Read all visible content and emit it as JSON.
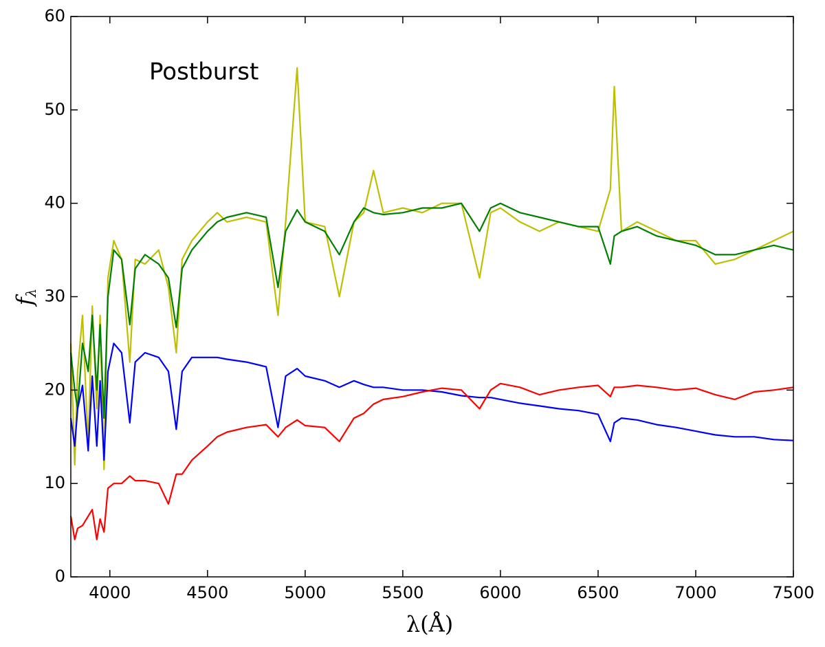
{
  "chart_data": {
    "type": "line",
    "xlabel": "λ(Å)",
    "ylabel": "f",
    "ylabel_subscript": "λ",
    "annotation": "Postburst",
    "x": [
      3800,
      3820,
      3835,
      3860,
      3889,
      3910,
      3933,
      3950,
      3970,
      3990,
      4020,
      4060,
      4102,
      4130,
      4180,
      4250,
      4300,
      4340,
      4370,
      4420,
      4500,
      4550,
      4600,
      4700,
      4800,
      4861,
      4900,
      4959,
      5000,
      5100,
      5175,
      5250,
      5300,
      5350,
      5400,
      5500,
      5600,
      5700,
      5800,
      5893,
      5950,
      6000,
      6100,
      6200,
      6300,
      6400,
      6500,
      6563,
      6583,
      6620,
      6700,
      6800,
      6900,
      7000,
      7100,
      7200,
      7300,
      7400,
      7500
    ],
    "series": [
      {
        "color": "#bfbf00",
        "values": [
          25,
          12,
          22,
          28,
          14,
          29,
          18,
          28,
          11.5,
          32,
          36,
          34,
          23,
          34,
          33.5,
          35,
          31,
          24,
          34,
          36,
          38,
          39,
          38,
          38.5,
          38,
          28,
          38,
          54.5,
          38,
          37.5,
          30,
          38,
          39,
          43.5,
          39,
          39.5,
          39,
          40,
          40,
          32,
          39,
          39.5,
          38,
          37,
          38,
          37.5,
          37,
          41.5,
          52.5,
          37,
          38,
          37,
          36,
          36,
          33.5,
          34,
          35,
          36,
          37
        ]
      },
      {
        "color": "#008000",
        "values": [
          24,
          20,
          18,
          25,
          22,
          28,
          20,
          27,
          17,
          30,
          35,
          34,
          27,
          33,
          34.5,
          33.5,
          32,
          26.7,
          33,
          35,
          37,
          38,
          38.5,
          39,
          38.5,
          31,
          37,
          39.3,
          38,
          37,
          34.5,
          38,
          39.5,
          39,
          38.8,
          39,
          39.5,
          39.5,
          40,
          37,
          39.5,
          40,
          39,
          38.5,
          38,
          37.5,
          37.5,
          33.5,
          36.5,
          37,
          37.5,
          36.5,
          36,
          35.5,
          34.5,
          34.5,
          35,
          35.5,
          35
        ]
      },
      {
        "color": "#0000ff",
        "values": [
          17,
          14,
          18,
          20.5,
          13.5,
          21.5,
          14,
          21,
          12.5,
          22,
          25,
          24,
          16.5,
          23,
          24,
          23.5,
          22,
          15.8,
          22,
          23.5,
          23.5,
          23.5,
          23.3,
          23,
          22.5,
          16,
          21.5,
          22.3,
          21.5,
          21,
          20.3,
          21,
          20.6,
          20.3,
          20.3,
          20,
          20,
          19.8,
          19.4,
          19.2,
          19.2,
          19,
          18.6,
          18.3,
          18,
          17.8,
          17.4,
          14.5,
          16.5,
          17,
          16.8,
          16.3,
          16,
          15.6,
          15.2,
          15,
          15,
          14.7,
          14.6
        ]
      },
      {
        "color": "#ff0000",
        "values": [
          6.5,
          4,
          5.2,
          5.5,
          6.5,
          7.2,
          4,
          6.2,
          4.8,
          9.5,
          10,
          10,
          10.8,
          10.3,
          10.3,
          10,
          7.8,
          11,
          11,
          12.5,
          14,
          15,
          15.5,
          16,
          16.3,
          15,
          16,
          16.8,
          16.2,
          16,
          14.5,
          17,
          17.5,
          18.5,
          19,
          19.3,
          19.8,
          20.2,
          20,
          18,
          20,
          20.7,
          20.3,
          19.5,
          20,
          20.3,
          20.5,
          19.3,
          20.3,
          20.3,
          20.5,
          20.3,
          20,
          20.2,
          19.5,
          19,
          19.8,
          20,
          20.3
        ]
      }
    ],
    "xlim": [
      3800,
      7500
    ],
    "xticks": [
      4000,
      4500,
      5000,
      5500,
      6000,
      6500,
      7000,
      7500
    ],
    "ylim": [
      0,
      60
    ],
    "yticks": [
      0,
      10,
      20,
      30,
      40,
      50,
      60
    ]
  }
}
